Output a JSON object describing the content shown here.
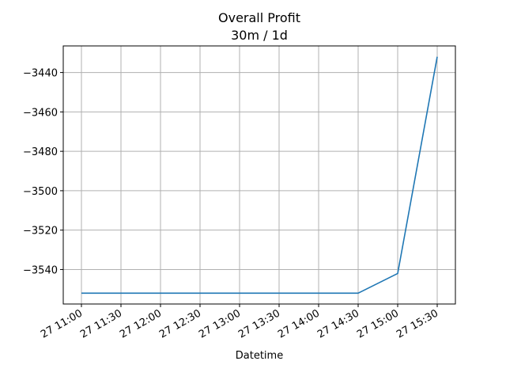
{
  "chart_data": {
    "type": "line",
    "title": "Overall Profit",
    "subtitle": "30m / 1d",
    "xlabel": "Datetime",
    "ylabel": "",
    "x": [
      "27 11:00",
      "27 11:30",
      "27 12:00",
      "27 12:30",
      "27 13:00",
      "27 13:30",
      "27 14:00",
      "27 14:30",
      "27 15:00",
      "27 15:30"
    ],
    "series": [
      {
        "values": [
          -3552,
          -3552,
          -3552,
          -3552,
          -3552,
          -3552,
          -3552,
          -3552,
          -3542,
          -3432
        ]
      }
    ],
    "x_ticks": [
      "27 11:00",
      "27 11:30",
      "27 12:00",
      "27 12:30",
      "27 13:00",
      "27 13:30",
      "27 14:00",
      "27 14:30",
      "27 15:00",
      "27 15:30"
    ],
    "y_ticks": [
      -3440,
      -3460,
      -3480,
      -3500,
      -3520,
      -3540
    ],
    "ylim": [
      -3557.5,
      -3426.5
    ],
    "grid": true,
    "line_color": "#1f77b4"
  }
}
